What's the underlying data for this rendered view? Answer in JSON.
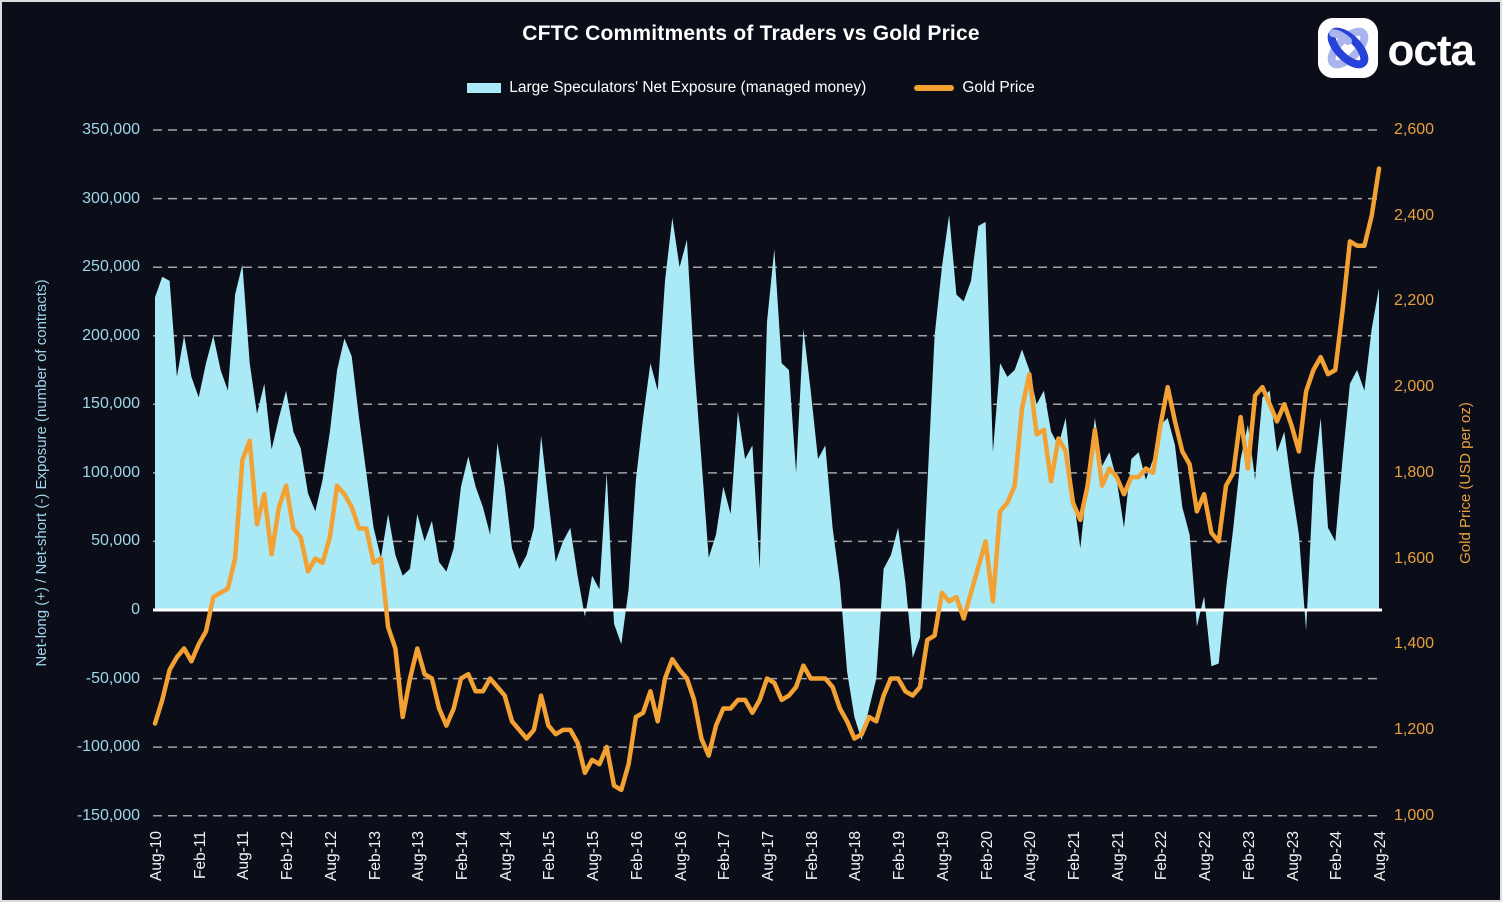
{
  "header": {
    "title": "CFTC Commitments of Traders vs Gold Price",
    "logo_text": "octa"
  },
  "legend": [
    {
      "label": "Large Speculators' Net Exposure (managed money)",
      "swatch": "area",
      "color": "#A9EAF6"
    },
    {
      "label": "Gold Price",
      "swatch": "line",
      "color": "#F2A132"
    }
  ],
  "left_axis": {
    "title": "Net-long (+) / Net-short (-) Exposure (number of contracts)",
    "color": "#9ED6EA",
    "ticks": [
      "350,000",
      "300,000",
      "250,000",
      "200,000",
      "150,000",
      "100,000",
      "50,000",
      "0",
      "-50,000",
      "-100,000",
      "-150,000"
    ]
  },
  "right_axis": {
    "title": "Gold Price (USD per oz)",
    "color": "#E8A040",
    "ticks": [
      "2,600",
      "2,400",
      "2,200",
      "2,000",
      "1,800",
      "1,600",
      "1,400",
      "1,200",
      "1,000"
    ]
  },
  "x_axis": {
    "ticks": [
      "Aug-10",
      "Feb-11",
      "Aug-11",
      "Feb-12",
      "Aug-12",
      "Feb-13",
      "Aug-13",
      "Feb-14",
      "Aug-14",
      "Feb-15",
      "Aug-15",
      "Feb-16",
      "Aug-16",
      "Feb-17",
      "Aug-17",
      "Feb-18",
      "Aug-18",
      "Feb-19",
      "Aug-19",
      "Feb-20",
      "Aug-20",
      "Feb-21",
      "Aug-21",
      "Feb-22",
      "Aug-22",
      "Feb-23",
      "Aug-23",
      "Feb-24",
      "Aug-24"
    ]
  },
  "chart_data": {
    "type": "combo",
    "title": "CFTC Commitments of Traders vs Gold Price",
    "x_monthly_start": "Aug-2010",
    "x_monthly_end": "Aug-2024",
    "x_tick_interval_months": 6,
    "left_ylabel": "Net-long (+) / Net-short (-) Exposure (number of contracts)",
    "right_ylabel": "Gold Price (USD per oz)",
    "left_ylim": [
      -150000,
      350000
    ],
    "right_ylim": [
      1000,
      2600
    ],
    "grid": "horizontal dashed light-gray; solid white line at left-axis 0",
    "legend_position": "top center",
    "series": [
      {
        "name": "Large Speculators' Net Exposure (managed money)",
        "type": "area",
        "axis": "left",
        "color": "#A9EAF6",
        "values": [
          228000,
          243000,
          240000,
          170000,
          200000,
          170000,
          155000,
          180000,
          200000,
          175000,
          160000,
          230000,
          252000,
          180000,
          143000,
          165000,
          117000,
          140000,
          160000,
          130000,
          118000,
          85000,
          72000,
          95000,
          130000,
          175000,
          198000,
          185000,
          140000,
          100000,
          60000,
          38000,
          70000,
          40000,
          25000,
          30000,
          70000,
          50000,
          65000,
          35000,
          28000,
          45000,
          90000,
          112000,
          90000,
          75000,
          55000,
          122000,
          90000,
          45000,
          30000,
          40000,
          60000,
          127000,
          80000,
          35000,
          50000,
          60000,
          25000,
          -5000,
          25000,
          15000,
          100000,
          -10000,
          -25000,
          15000,
          95000,
          140000,
          180000,
          160000,
          240000,
          286000,
          250000,
          270000,
          180000,
          110000,
          38000,
          55000,
          90000,
          70000,
          145000,
          110000,
          120000,
          30000,
          210000,
          263000,
          180000,
          175000,
          100000,
          205000,
          160000,
          110000,
          120000,
          60000,
          20000,
          -45000,
          -78000,
          -95000,
          -72000,
          -50000,
          30000,
          40000,
          60000,
          20000,
          -35000,
          -20000,
          90000,
          200000,
          250000,
          288000,
          230000,
          225000,
          240000,
          280000,
          283000,
          115000,
          180000,
          170000,
          175000,
          190000,
          175000,
          150000,
          160000,
          130000,
          120000,
          140000,
          85000,
          45000,
          95000,
          140000,
          105000,
          115000,
          95000,
          60000,
          110000,
          115000,
          95000,
          110000,
          135000,
          140000,
          120000,
          75000,
          55000,
          -12000,
          10000,
          -41000,
          -39000,
          15000,
          60000,
          110000,
          135000,
          95000,
          155000,
          160000,
          115000,
          130000,
          90000,
          55000,
          -15000,
          95000,
          140000,
          60000,
          50000,
          110000,
          165000,
          175000,
          160000,
          205000,
          235000
        ]
      },
      {
        "name": "Gold Price",
        "type": "line",
        "axis": "right",
        "color": "#F2A132",
        "values": [
          1215,
          1270,
          1340,
          1370,
          1390,
          1360,
          1400,
          1430,
          1510,
          1520,
          1530,
          1600,
          1830,
          1875,
          1680,
          1750,
          1610,
          1720,
          1770,
          1670,
          1650,
          1570,
          1600,
          1590,
          1650,
          1770,
          1750,
          1720,
          1670,
          1670,
          1590,
          1600,
          1440,
          1390,
          1230,
          1320,
          1390,
          1330,
          1320,
          1250,
          1210,
          1250,
          1320,
          1330,
          1290,
          1290,
          1320,
          1300,
          1280,
          1220,
          1200,
          1180,
          1200,
          1280,
          1210,
          1190,
          1200,
          1200,
          1170,
          1100,
          1130,
          1120,
          1160,
          1070,
          1060,
          1120,
          1230,
          1240,
          1290,
          1220,
          1320,
          1365,
          1340,
          1320,
          1270,
          1180,
          1140,
          1210,
          1250,
          1250,
          1270,
          1270,
          1240,
          1270,
          1320,
          1310,
          1270,
          1280,
          1300,
          1350,
          1320,
          1320,
          1320,
          1300,
          1250,
          1220,
          1180,
          1190,
          1230,
          1220,
          1280,
          1320,
          1320,
          1290,
          1280,
          1300,
          1410,
          1420,
          1520,
          1500,
          1510,
          1460,
          1520,
          1580,
          1640,
          1500,
          1710,
          1730,
          1770,
          1950,
          2030,
          1890,
          1900,
          1780,
          1880,
          1850,
          1730,
          1690,
          1770,
          1900,
          1770,
          1810,
          1790,
          1750,
          1790,
          1790,
          1810,
          1800,
          1910,
          2000,
          1920,
          1850,
          1820,
          1710,
          1750,
          1660,
          1640,
          1770,
          1800,
          1930,
          1810,
          1980,
          2000,
          1960,
          1920,
          1960,
          1910,
          1850,
          1990,
          2040,
          2070,
          2030,
          2040,
          2180,
          2340,
          2330,
          2330,
          2400,
          2510
        ]
      }
    ]
  }
}
